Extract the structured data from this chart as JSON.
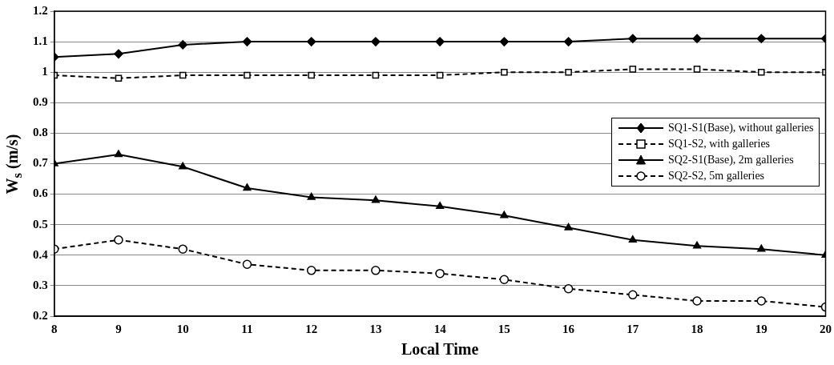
{
  "chart_data": {
    "type": "line",
    "xlabel": "Local Time",
    "ylabel": "W$_{s}$ (m/s)",
    "x": [
      8,
      9,
      10,
      11,
      12,
      13,
      14,
      15,
      16,
      17,
      18,
      19,
      20
    ],
    "xlim": [
      8,
      20
    ],
    "xticks": [
      8,
      9,
      10,
      11,
      12,
      13,
      14,
      15,
      16,
      17,
      18,
      19,
      20
    ],
    "ylim": [
      0.2,
      1.2
    ],
    "yticks": [
      0.2,
      0.3,
      0.4,
      0.5,
      0.6,
      0.7,
      0.8,
      0.9,
      1,
      1.1,
      1.2
    ],
    "grid": "y",
    "legend": "right",
    "series": [
      {
        "name": "SQ1-S1(Base), without galleries",
        "color": "#000000",
        "marker": "diamond",
        "line_style": "solid",
        "values": [
          1.05,
          1.06,
          1.09,
          1.1,
          1.1,
          1.1,
          1.1,
          1.1,
          1.1,
          1.11,
          1.11,
          1.11,
          1.11
        ]
      },
      {
        "name": "SQ1-S2, with galleries",
        "color": "#000000",
        "marker": "square",
        "line_style": "dashed",
        "values": [
          0.99,
          0.98,
          0.99,
          0.99,
          0.99,
          0.99,
          0.99,
          1.0,
          1.0,
          1.01,
          1.01,
          1.0,
          1.0
        ]
      },
      {
        "name": "SQ2-S1(Base), 2m galleries",
        "color": "#000000",
        "marker": "triangle",
        "line_style": "solid",
        "values": [
          0.7,
          0.73,
          0.69,
          0.62,
          0.59,
          0.58,
          0.56,
          0.53,
          0.49,
          0.45,
          0.43,
          0.42,
          0.4
        ]
      },
      {
        "name": "SQ2-S2, 5m galleries",
        "color": "#000000",
        "marker": "circle",
        "line_style": "dashed",
        "values": [
          0.42,
          0.45,
          0.42,
          0.37,
          0.35,
          0.35,
          0.34,
          0.32,
          0.29,
          0.27,
          0.25,
          0.25,
          0.23
        ]
      }
    ]
  }
}
